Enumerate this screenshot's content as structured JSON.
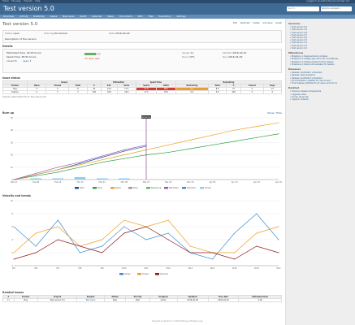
{
  "topbar": {
    "items": [
      "Home",
      "My page",
      "Projects",
      "Help"
    ],
    "right": "Logged in as admin  My account  Sign out"
  },
  "header": {
    "title": "Test version 5.0",
    "search_placeholder": "Search:",
    "jump_label": "Jump to a project..."
  },
  "menu": [
    "Overview",
    "Activity",
    "Roadmap",
    "Issues",
    "New issue",
    "Gantt",
    "Calendar",
    "News",
    "Documents",
    "Wiki",
    "Files",
    "Repository",
    "Settings"
  ],
  "actions": [
    "Edit",
    "Duplicate",
    "Delete",
    "Add issue",
    "Graph"
  ],
  "version": {
    "name": "Test version 5.0",
    "status_label": "Status",
    "status": "open",
    "sharing_label": "Sharing",
    "sharing": "Not shared",
    "wiki_label": "Wiki page",
    "wiki": "",
    "date_label": "Date",
    "date": "2016-04-29",
    "description": "Description of the version"
  },
  "details": {
    "title": "Details",
    "estimate": "Estimated time: 42.00 hours",
    "spent": "Spent time: 38.50 hours",
    "closed": "closed 8",
    "open": "open 3",
    "late": "15 days late",
    "rows": [
      {
        "label": "Issues",
        "value": "11"
      },
      {
        "label": "Done",
        "value": "72%"
      },
      {
        "label": "Started",
        "value": "2016-02-01"
      },
      {
        "label": "Due",
        "value": "2016-04-29"
      }
    ]
  },
  "table": {
    "title": "Issue status",
    "groups": [
      "Issues",
      "Estimation",
      "Spent time",
      "Remaining"
    ],
    "headers": [
      "Tracker",
      "Open",
      "Closed",
      "Total",
      "%",
      "Est.",
      "Done",
      "Spent",
      "Ratio",
      "Remaining",
      "Total",
      "%",
      "Closed",
      "Days"
    ],
    "rows": [
      {
        "cells": [
          "Bug",
          "3",
          "5",
          "8",
          "62",
          "24.0",
          "17.5",
          "21.0",
          "88%",
          "6.5",
          "8.0",
          "75",
          "5",
          "12"
        ]
      },
      {
        "cells": [
          "Feature",
          "0",
          "3",
          "3",
          "100",
          "18.0",
          "18.0",
          "17.5",
          "97%",
          "0.0",
          "3.0",
          "100",
          "3",
          "0"
        ]
      }
    ],
    "footnote": "Values estimated from the issue list"
  },
  "burn": {
    "title": "Burn up",
    "toggle": "Show / Hide",
    "tooltip": "Remaining",
    "xlabels": [
      "Feb 01",
      "Feb 08",
      "Feb 15",
      "Feb 22",
      "Mar 01",
      "Mar 08",
      "Mar 15",
      "Mar 22",
      "Mar 29",
      "Apr 05",
      "Apr 12",
      "Apr 19",
      "Apr 26"
    ],
    "ylabels": [
      "0",
      "10",
      "20",
      "30",
      "40",
      "50"
    ],
    "legend": [
      "Total",
      "Done",
      "Spent",
      "Ideal",
      "Remaining",
      "Estimated",
      "Projected",
      "Closed"
    ]
  },
  "velocity": {
    "title": "Velocity and trends",
    "ylabels": [
      "0",
      "2",
      "4",
      "6",
      "8",
      "10"
    ],
    "xlabels": [
      "W5",
      "W6",
      "W7",
      "W8",
      "W9",
      "W10",
      "W11",
      "W12",
      "W13",
      "W14",
      "W15",
      "W16",
      "W17"
    ],
    "legend": [
      "Added",
      "Closed",
      "Overdue"
    ]
  },
  "issues": {
    "title": "Related issues",
    "headers": [
      "#",
      "Tracker",
      "Project",
      "Subject",
      "Status",
      "Priority",
      "Assignee",
      "Updated",
      "Due date",
      "Estimated time"
    ],
    "row": [
      "21",
      "Bug",
      "Test version 5.0",
      "Bad value",
      "New",
      "High",
      "admin",
      "2016-04-18",
      "2016-04-29",
      "4.00"
    ]
  },
  "sidebar": {
    "sections": [
      {
        "title": "Versions",
        "items": [
          "Test version 5.0",
          "Test version 4.9",
          "Test version 4.8",
          "Test version 4.7",
          "Test version 4.6",
          "Test version 4.5",
          "Test version 4.4",
          "Test version 4.3",
          "Test version 4.2"
        ]
      },
      {
        "title": "Milestones",
        "items": [
          "Milestone 1: Requirements complete",
          "Milestone 2: Design sign-off on all core features",
          "Milestone 3: Feature freeze for this release",
          "Milestone 4: Beta build available for testers"
        ]
      },
      {
        "title": "Releases",
        "items": [
          "Release candidate 1 scheduled",
          "Release notes prepared",
          "Release candidate 2 scheduled",
          "Documentation updated for new version",
          "Final release published to all users and mirrors"
        ]
      },
      {
        "title": "Related",
        "items": [
          "Previous release retrospective",
          "Upgrade notes",
          "Known issues list",
          "Support contacts"
        ]
      }
    ]
  },
  "footer": "Powered by Redmine © 2006-2016 Jean-Philippe Lang",
  "chart_data": [
    {
      "type": "line",
      "title": "Burn up",
      "x": [
        "Feb 01",
        "Feb 08",
        "Feb 15",
        "Feb 22",
        "Mar 01",
        "Mar 08",
        "Mar 15",
        "Mar 22",
        "Mar 29",
        "Apr 05",
        "Apr 12",
        "Apr 19",
        "Apr 26"
      ],
      "ylim": [
        0,
        50
      ],
      "series": [
        {
          "name": "Total",
          "color": "#1f4e9a",
          "values": [
            0,
            4,
            8,
            13,
            18,
            23,
            27,
            null,
            null,
            null,
            null,
            null,
            null
          ]
        },
        {
          "name": "Done",
          "color": "#2aa04a",
          "values": [
            0,
            3,
            6,
            10,
            14,
            17,
            20,
            22,
            25,
            28,
            31,
            34,
            37
          ]
        },
        {
          "name": "Spent",
          "color": "#f0a020",
          "values": [
            0,
            4,
            8,
            12,
            16,
            20,
            24,
            28,
            32,
            36,
            40,
            43,
            46
          ]
        },
        {
          "name": "Estimated",
          "color": "#9b59b6",
          "values": [
            0,
            5,
            10,
            14,
            19,
            24,
            28,
            null,
            null,
            null,
            null,
            null,
            null
          ]
        }
      ],
      "bars": {
        "name": "Closed",
        "color": "#8ecfef",
        "values": [
          0,
          1,
          1,
          2,
          1,
          1,
          0,
          0,
          0,
          0,
          0,
          0,
          0
        ]
      }
    },
    {
      "type": "line",
      "title": "Velocity and trends",
      "x": [
        "W5",
        "W6",
        "W7",
        "W8",
        "W9",
        "W10",
        "W11",
        "W12",
        "W13",
        "W14",
        "W15",
        "W16",
        "W17"
      ],
      "ylim": [
        0,
        10
      ],
      "series": [
        {
          "name": "Added",
          "color": "#3b8fd6",
          "values": [
            6,
            3,
            7,
            2,
            3,
            6,
            4,
            5,
            2,
            1,
            5,
            8,
            4
          ]
        },
        {
          "name": "Closed",
          "color": "#f0a020",
          "values": [
            2,
            5,
            6,
            3,
            4,
            7,
            6,
            7,
            3,
            2,
            2,
            5,
            6
          ]
        },
        {
          "name": "Overdue",
          "color": "#8b1a1a",
          "values": [
            1,
            2,
            4,
            3,
            2,
            5,
            6,
            4,
            2,
            2,
            1,
            3,
            2
          ]
        }
      ]
    }
  ]
}
